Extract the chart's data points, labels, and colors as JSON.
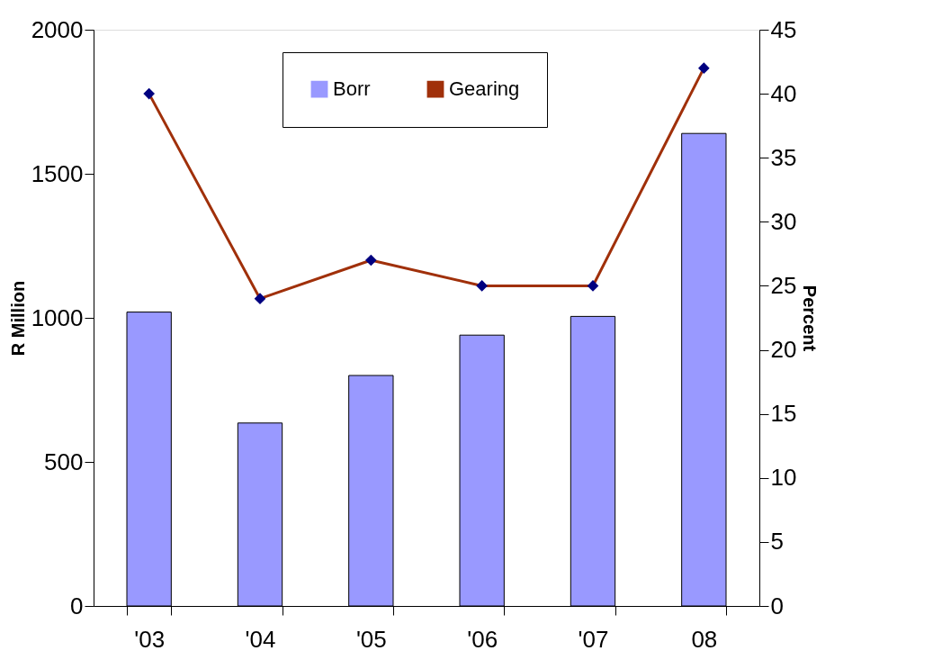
{
  "chart_data": {
    "type": "bar",
    "categories": [
      "'03",
      "'04",
      "'05",
      "'06",
      "'07",
      "08"
    ],
    "ylabel": "R Million",
    "y2label": "Percent",
    "series": [
      {
        "name": "Borr",
        "type": "bar",
        "color": "#9999ff",
        "values": [
          1020,
          635,
          800,
          940,
          1005,
          1640
        ]
      },
      {
        "name": "Gearing",
        "type": "line",
        "axis": "y2",
        "color": "#a0300a",
        "colors": [
          "#000080",
          "#000080",
          "#000080",
          "#000080",
          "#000080",
          "#000080"
        ],
        "values": [
          40,
          24,
          27,
          25,
          25,
          42
        ]
      }
    ],
    "ylim": [
      0,
      2000
    ],
    "yticks": [
      0,
      500,
      1000,
      1500,
      2000
    ],
    "y2lim": [
      0,
      45
    ],
    "y2ticks": [
      0,
      5,
      10,
      15,
      20,
      25,
      30,
      35,
      40,
      45
    ],
    "grid": false,
    "legend": "top",
    "marker": "diamond",
    "line_style": "solid"
  }
}
